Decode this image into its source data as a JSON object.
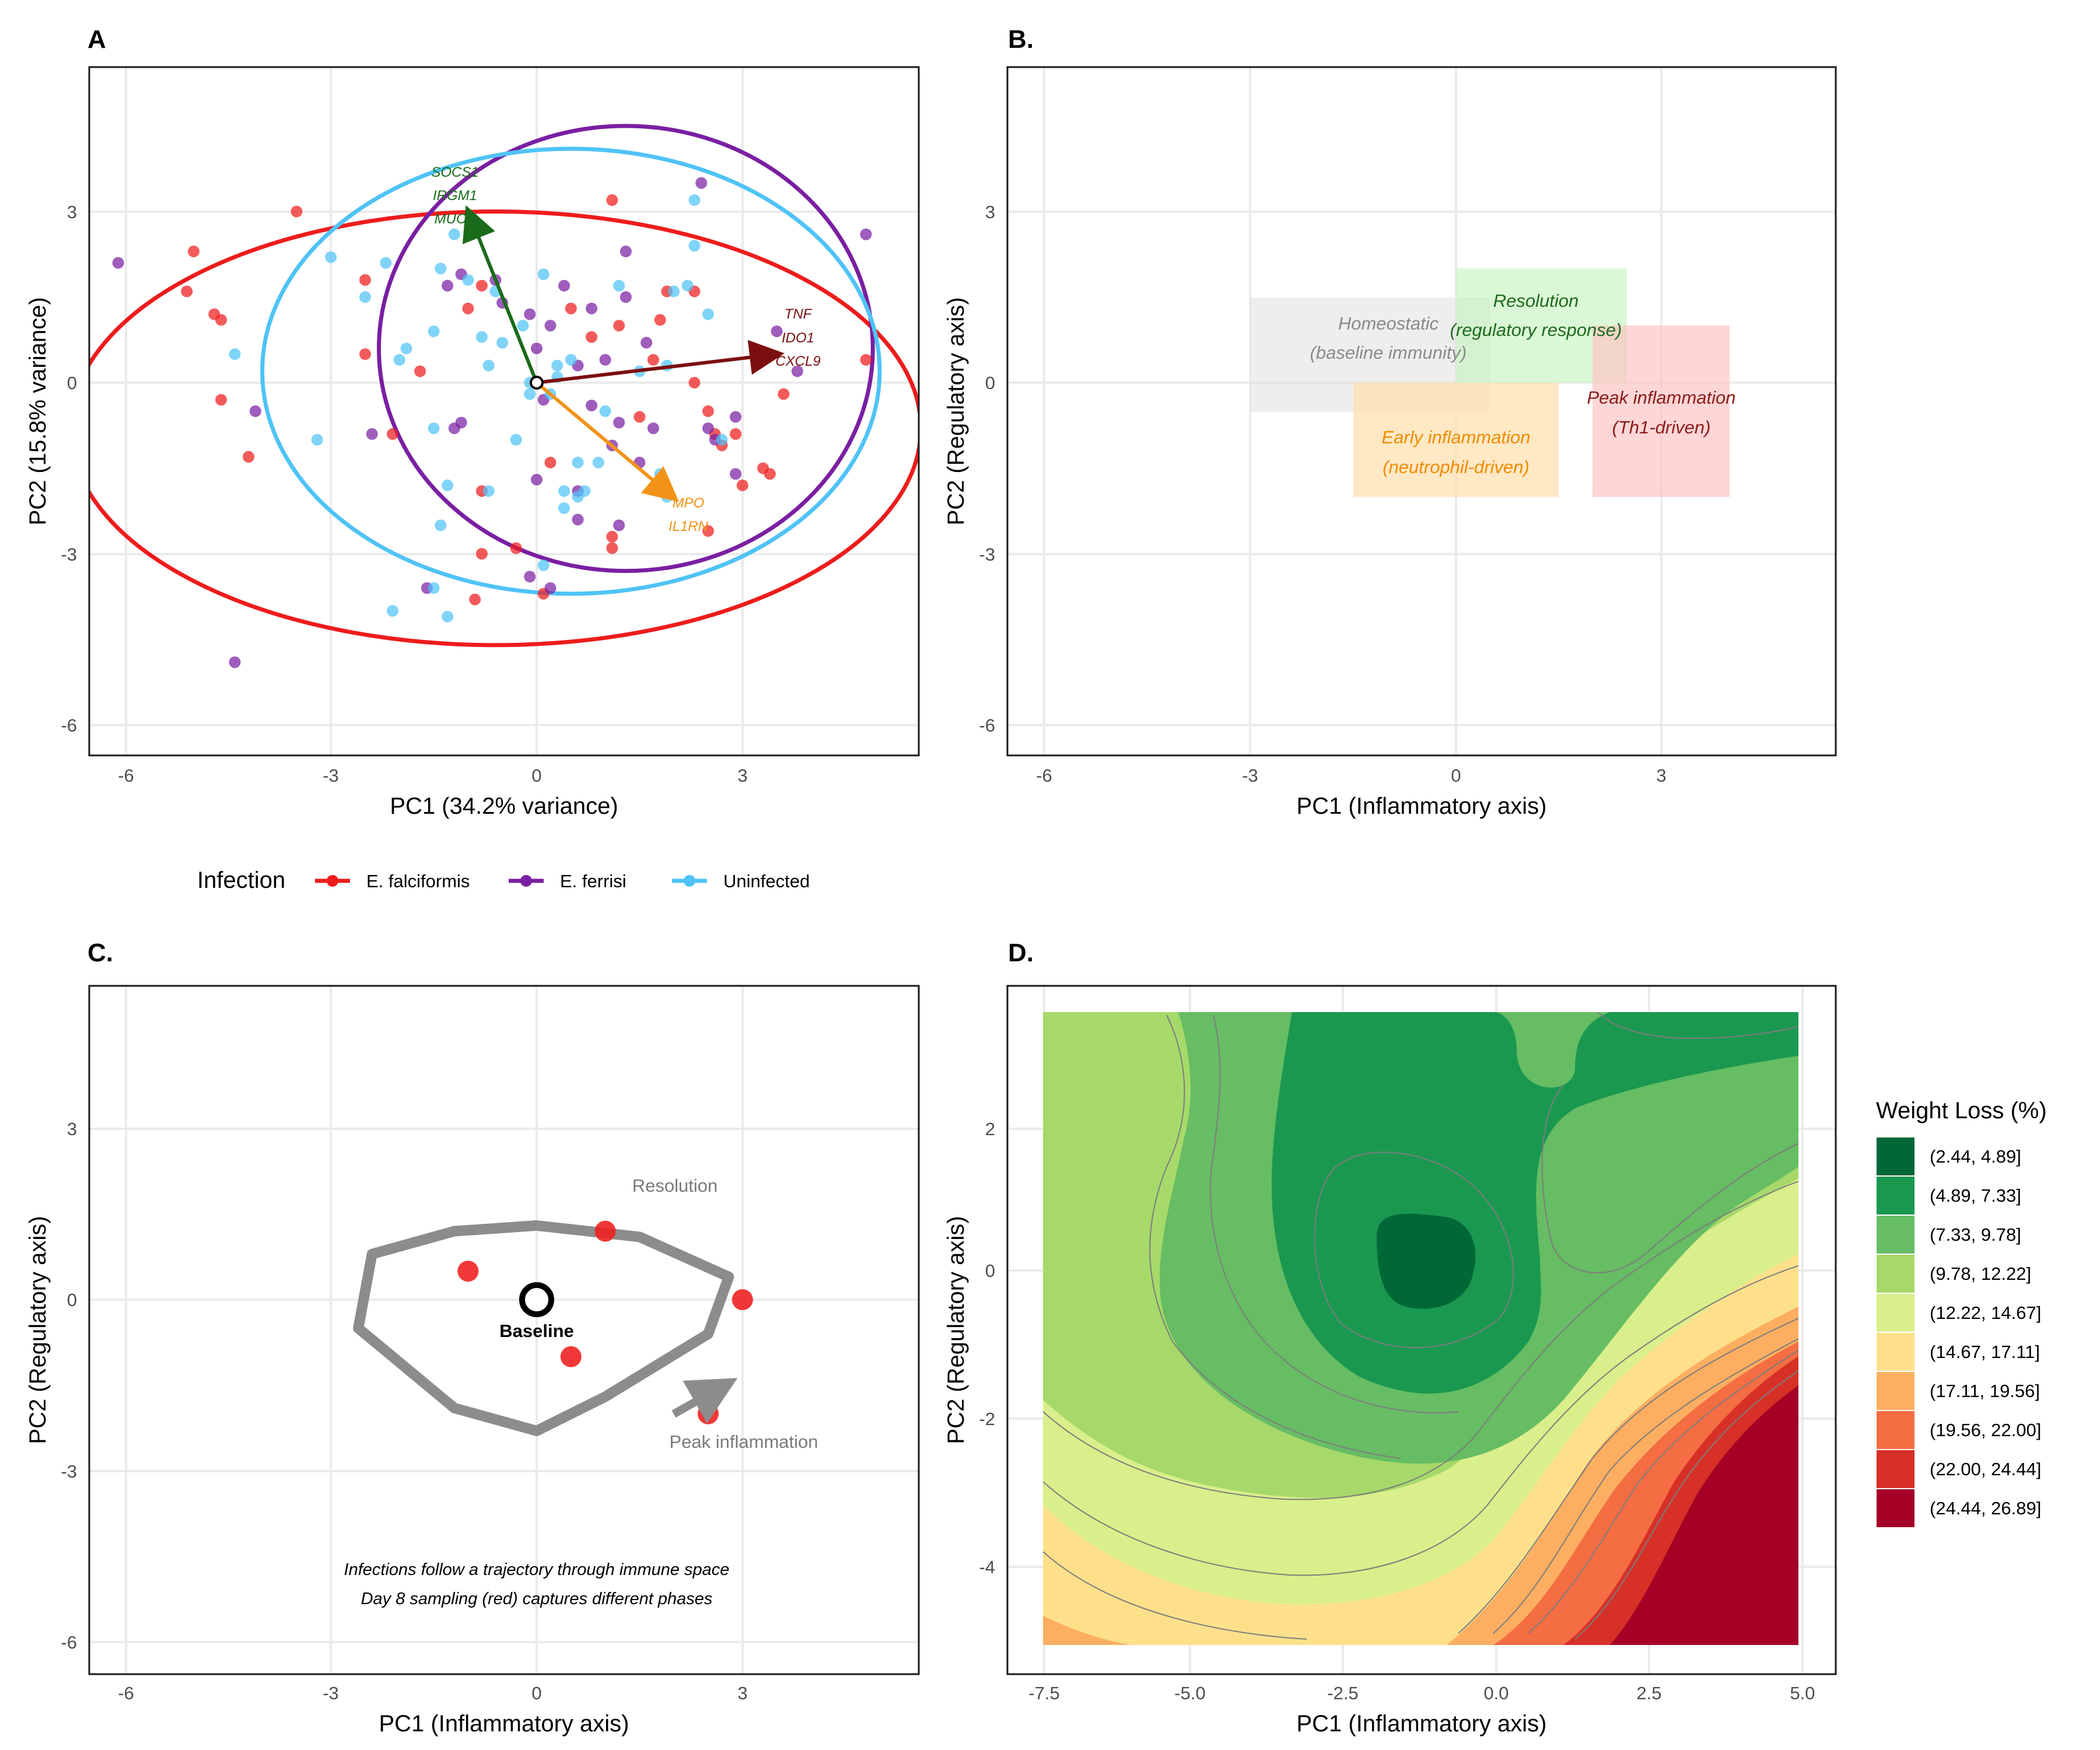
{
  "panels": {
    "A": {
      "tag": "A",
      "xlabel": "PC1 (34.2% variance)",
      "ylabel": "PC2 (15.8% variance)",
      "xticks": [
        "-6",
        "-3",
        "0",
        "3"
      ],
      "yticks": [
        "3",
        "0",
        "-3",
        "-6"
      ],
      "legend": {
        "title": "Infection",
        "entries": [
          {
            "name": "E. falciformis",
            "color": "#ee1c1c"
          },
          {
            "name": "E. ferrisi",
            "color": "#7a1fa2"
          },
          {
            "name": "Uninfected",
            "color": "#4fc3f7"
          }
        ]
      },
      "loadings": [
        {
          "labels": [
            "SOCS1",
            "IRGM1",
            "MUC"
          ],
          "color": "#1a6b1a",
          "x": -1.0,
          "y": 3.0
        },
        {
          "labels": [
            "TNF",
            "IDO1",
            "CXCL9"
          ],
          "color": "#7b0f0f",
          "x": 3.5,
          "y": 0.5
        },
        {
          "labels": [
            "MPO",
            "IL1RN"
          ],
          "color": "#f29318",
          "x": 2.0,
          "y": -2.0
        }
      ]
    },
    "B": {
      "tag": "B.",
      "xlabel": "PC1 (Inflammatory axis)",
      "ylabel": "PC2 (Regulatory axis)",
      "xticks": [
        "-6",
        "-3",
        "0",
        "3"
      ],
      "yticks": [
        "3",
        "0",
        "-3",
        "-6"
      ],
      "regions": [
        {
          "line1": "Homeostatic",
          "line2": "(baseline immunity)",
          "x": [
            -3,
            0.5
          ],
          "y": [
            -0.5,
            1.5
          ],
          "fill": "#e0e0e0",
          "text": "#8a8a8a"
        },
        {
          "line1": "Early inflammation",
          "line2": "(neutrophil-driven)",
          "x": [
            -1.5,
            1.5
          ],
          "y": [
            -2,
            0
          ],
          "fill": "#ffe0b0",
          "text": "#f08c00"
        },
        {
          "line1": "Resolution",
          "line2": "(regulatory response)",
          "x": [
            0,
            2.5
          ],
          "y": [
            0,
            2
          ],
          "fill": "#c8f5c0",
          "text": "#1e6b1e"
        },
        {
          "line1": "Peak inflammation",
          "line2": "(Th1-driven)",
          "x": [
            2,
            4
          ],
          "y": [
            -2,
            1
          ],
          "fill": "#ffc0c0",
          "text": "#8b1a1a"
        }
      ]
    },
    "C": {
      "tag": "C.",
      "xlabel": "PC1 (Inflammatory axis)",
      "ylabel": "PC2 (Regulatory axis)",
      "xticks": [
        "-6",
        "-3",
        "0",
        "3"
      ],
      "yticks": [
        "3",
        "0",
        "-3",
        "-6"
      ],
      "baseline_label": "Baseline",
      "resolution_label": "Resolution",
      "peak_label": "Peak inflammation",
      "caption_line1": "Infections follow a trajectory through immune space",
      "caption_line2": "Day 8 sampling (red) captures different phases"
    },
    "D": {
      "tag": "D.",
      "xlabel": "PC1 (Inflammatory axis)",
      "ylabel": "PC2 (Regulatory axis)",
      "xticks": [
        "-7.5",
        "-5.0",
        "-2.5",
        "0.0",
        "2.5",
        "5.0"
      ],
      "yticks": [
        "2",
        "0",
        "-2",
        "-4"
      ],
      "legend_title": "Weight Loss (%)",
      "bins": [
        {
          "label": "(2.44, 4.89]",
          "color": "#006837"
        },
        {
          "label": "(4.89, 7.33]",
          "color": "#1a9850"
        },
        {
          "label": "(7.33, 9.78]",
          "color": "#66bd63"
        },
        {
          "label": "(9.78, 12.22]",
          "color": "#a6d96a"
        },
        {
          "label": "(12.22, 14.67]",
          "color": "#d9ef8b"
        },
        {
          "label": "(14.67, 17.11]",
          "color": "#fee08b"
        },
        {
          "label": "(17.11, 19.56]",
          "color": "#fdae61"
        },
        {
          "label": "(19.56, 22.00]",
          "color": "#f46d43"
        },
        {
          "label": "(22.00, 24.44]",
          "color": "#d73027"
        },
        {
          "label": "(24.44, 26.89]",
          "color": "#a50026"
        }
      ]
    }
  },
  "chart_data": [
    {
      "type": "scatter",
      "xlim": [
        -6.5,
        5.5
      ],
      "ylim": [
        -6.5,
        5.5
      ],
      "grid": true,
      "legend_position": "bottom",
      "series": [
        {
          "name": "E. falciformis",
          "points": [
            [
              -5,
              2.3
            ],
            [
              -3.5,
              3
            ],
            [
              -5.1,
              1.6
            ],
            [
              -4.7,
              1.2
            ],
            [
              -4.6,
              1.1
            ],
            [
              -4.6,
              -0.3
            ],
            [
              -4.2,
              -1.3
            ],
            [
              -2.5,
              0.5
            ],
            [
              -2.1,
              -0.9
            ],
            [
              -2.5,
              1.8
            ],
            [
              -1.7,
              0.2
            ],
            [
              -1.0,
              1.3
            ],
            [
              -0.8,
              1.7
            ],
            [
              1.1,
              3.2
            ],
            [
              1.2,
              1.0
            ],
            [
              0.5,
              1.3
            ],
            [
              0.8,
              0.8
            ],
            [
              1.7,
              0.4
            ],
            [
              1.5,
              -0.6
            ],
            [
              1.8,
              1.1
            ],
            [
              2.3,
              0
            ],
            [
              3.3,
              -1.5
            ],
            [
              3.4,
              -1.6
            ],
            [
              3.0,
              -1.8
            ],
            [
              2.7,
              -1.1
            ],
            [
              2.6,
              -0.9
            ],
            [
              2.5,
              -0.5
            ],
            [
              3.6,
              -0.2
            ],
            [
              4.8,
              0.4
            ],
            [
              2.3,
              1.6
            ],
            [
              0.2,
              -1.4
            ],
            [
              -0.8,
              -1.9
            ],
            [
              -0.3,
              -2.9
            ],
            [
              -0.8,
              -3.0
            ],
            [
              -0.9,
              -3.8
            ],
            [
              0.1,
              -3.7
            ],
            [
              1.1,
              -2.9
            ],
            [
              1.1,
              -2.7
            ],
            [
              2.5,
              -2.6
            ],
            [
              1.9,
              1.6
            ],
            [
              2.9,
              -0.9
            ]
          ]
        },
        {
          "name": "E. ferrisi",
          "points": [
            [
              -6.1,
              2.1
            ],
            [
              -4.1,
              -0.5
            ],
            [
              -4.4,
              -4.9
            ],
            [
              -2.4,
              -0.9
            ],
            [
              -1.6,
              -3.6
            ],
            [
              -1.1,
              1.9
            ],
            [
              -1.3,
              1.7
            ],
            [
              -0.6,
              1.8
            ],
            [
              -0.5,
              1.4
            ],
            [
              -0.1,
              1.2
            ],
            [
              0.0,
              0.6
            ],
            [
              0.2,
              1.0
            ],
            [
              0.4,
              1.7
            ],
            [
              0.6,
              0.3
            ],
            [
              0.8,
              -0.4
            ],
            [
              1.0,
              0.4
            ],
            [
              1.1,
              -1.1
            ],
            [
              1.3,
              1.5
            ],
            [
              1.6,
              0.7
            ],
            [
              1.5,
              -1.4
            ],
            [
              1.7,
              -0.8
            ],
            [
              0.0,
              -1.7
            ],
            [
              -0.1,
              -3.4
            ],
            [
              0.2,
              -3.6
            ],
            [
              0.6,
              -1.9
            ],
            [
              0.6,
              -2.4
            ],
            [
              1.2,
              -2.5
            ],
            [
              2.4,
              3.5
            ],
            [
              2.5,
              -0.8
            ],
            [
              2.6,
              -1.0
            ],
            [
              2.9,
              -0.6
            ],
            [
              3.5,
              0.9
            ],
            [
              3.8,
              0.2
            ],
            [
              4.8,
              2.6
            ],
            [
              2.9,
              -1.6
            ],
            [
              1.2,
              -0.7
            ],
            [
              -1.1,
              -0.7
            ],
            [
              -1.2,
              -0.8
            ],
            [
              0.8,
              1.3
            ],
            [
              1.3,
              2.3
            ],
            [
              0.1,
              -0.3
            ]
          ]
        },
        {
          "name": "Uninfected",
          "points": [
            [
              -4.4,
              0.5
            ],
            [
              -3.2,
              -1.0
            ],
            [
              -3.0,
              2.2
            ],
            [
              -2.5,
              1.5
            ],
            [
              -2.2,
              2.1
            ],
            [
              -2.0,
              0.4
            ],
            [
              -1.9,
              0.6
            ],
            [
              -1.5,
              0.9
            ],
            [
              -1.5,
              -0.8
            ],
            [
              -1.4,
              2.0
            ],
            [
              -1.3,
              -1.8
            ],
            [
              -1.2,
              2.6
            ],
            [
              -1.0,
              1.8
            ],
            [
              -0.8,
              0.8
            ],
            [
              -0.7,
              0.3
            ],
            [
              -0.6,
              1.6
            ],
            [
              -0.5,
              0.7
            ],
            [
              -0.3,
              -1.0
            ],
            [
              -0.2,
              1.0
            ],
            [
              -0.1,
              0.0
            ],
            [
              -0.1,
              -0.2
            ],
            [
              0.1,
              1.9
            ],
            [
              0.2,
              -0.2
            ],
            [
              0.3,
              0.1
            ],
            [
              0.3,
              0.3
            ],
            [
              0.5,
              0.4
            ],
            [
              0.6,
              -1.4
            ],
            [
              0.7,
              -1.9
            ],
            [
              0.9,
              -1.4
            ],
            [
              1.0,
              -0.5
            ],
            [
              1.2,
              1.7
            ],
            [
              1.5,
              0.2
            ],
            [
              1.8,
              -1.6
            ],
            [
              1.9,
              0.3
            ],
            [
              2.0,
              1.6
            ],
            [
              2.2,
              1.7
            ],
            [
              2.5,
              1.2
            ],
            [
              2.3,
              2.4
            ],
            [
              2.3,
              3.2
            ],
            [
              1.9,
              -2.0
            ],
            [
              -1.5,
              -3.6
            ],
            [
              -1.3,
              -4.1
            ],
            [
              -2.1,
              -4.0
            ],
            [
              -1.4,
              -2.5
            ],
            [
              -0.7,
              -1.9
            ],
            [
              0.1,
              -3.2
            ],
            [
              0.4,
              -1.9
            ],
            [
              0.6,
              -2.0
            ],
            [
              2.7,
              -1.0
            ],
            [
              0.4,
              -2.2
            ]
          ]
        }
      ],
      "ellipses": [
        {
          "name": "E. falciformis",
          "cx": -0.6,
          "cy": -0.8,
          "rx": 6.2,
          "ry": 3.8
        },
        {
          "name": "E. ferrisi",
          "cx": 1.3,
          "cy": 0.6,
          "rx": 3.6,
          "ry": 3.9
        },
        {
          "name": "Uninfected",
          "cx": 0.5,
          "cy": 0.2,
          "rx": 4.5,
          "ry": 3.9
        }
      ]
    },
    {
      "type": "other",
      "xlim": [
        -6.5,
        5.5
      ],
      "ylim": [
        -6.5,
        5.5
      ],
      "grid": true
    },
    {
      "type": "scatter",
      "xlim": [
        -6.5,
        5.5
      ],
      "ylim": [
        -6.5,
        5.5
      ],
      "grid": true,
      "trajectory": [
        [
          0,
          1.3
        ],
        [
          1.5,
          1.1
        ],
        [
          2.8,
          0.4
        ],
        [
          2.5,
          -0.6
        ],
        [
          1.0,
          -1.7
        ],
        [
          0,
          -2.3
        ],
        [
          -1.2,
          -1.9
        ],
        [
          -2.6,
          -0.5
        ],
        [
          -2.4,
          0.8
        ],
        [
          -1.2,
          1.2
        ],
        [
          0,
          1.3
        ]
      ],
      "baseline": [
        0,
        0
      ],
      "day8_points": [
        [
          -1.0,
          0.5
        ],
        [
          1.0,
          1.2
        ],
        [
          3.0,
          0
        ],
        [
          0.5,
          -1.0
        ],
        [
          2.5,
          -2.0
        ]
      ],
      "arrow": {
        "from": [
          2.0,
          -2.0
        ],
        "to": [
          2.8,
          -1.5
        ]
      }
    },
    {
      "type": "heatmap",
      "xlim": [
        -8,
        5
      ],
      "ylim": [
        -5.4,
        3.9
      ],
      "grid": true,
      "x_range": [
        -7.5,
        4.8
      ],
      "y_range": [
        -5.0,
        3.5
      ],
      "levels": [
        2.44,
        4.89,
        7.33,
        9.78,
        12.22,
        14.67,
        17.11,
        19.56,
        22.0,
        24.44,
        26.89
      ]
    }
  ]
}
